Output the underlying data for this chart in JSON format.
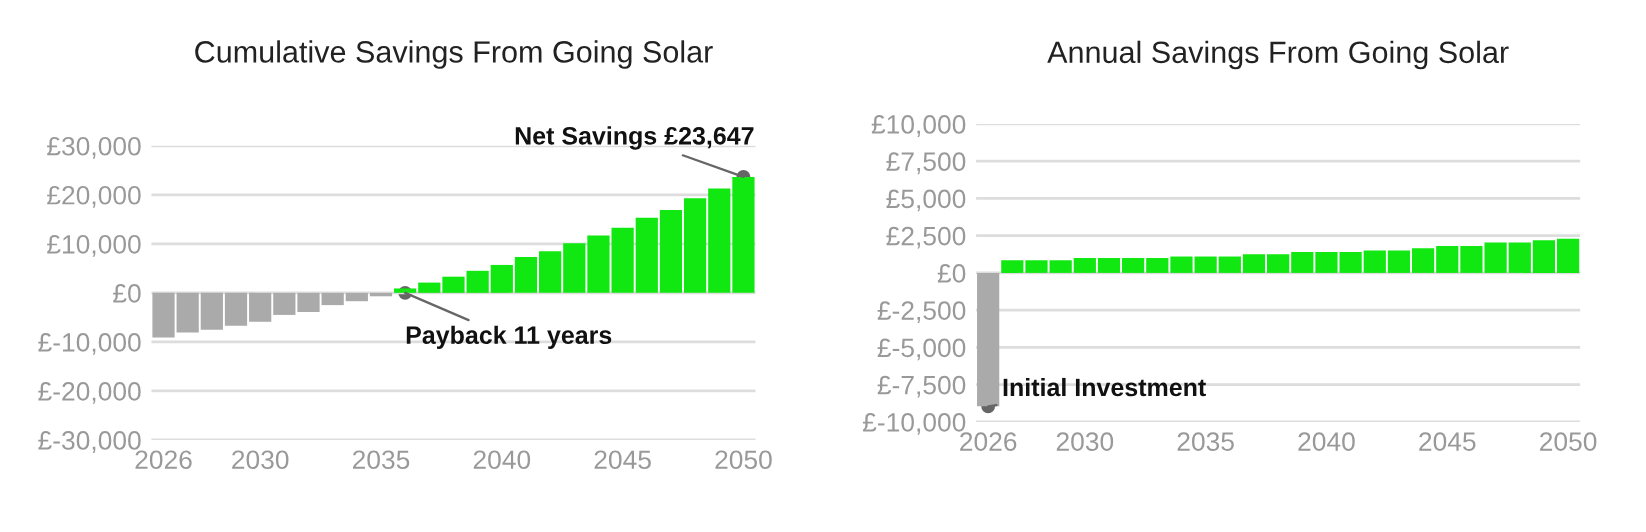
{
  "chart_data": [
    {
      "type": "bar",
      "title": "Cumulative Savings From Going Solar",
      "x": [
        2026,
        2027,
        2028,
        2029,
        2030,
        2031,
        2032,
        2033,
        2034,
        2035,
        2036,
        2037,
        2038,
        2039,
        2040,
        2041,
        2042,
        2043,
        2044,
        2045,
        2046,
        2047,
        2048,
        2049,
        2050
      ],
      "values": [
        -9100,
        -8100,
        -7500,
        -6700,
        -5900,
        -4500,
        -3900,
        -2500,
        -1700,
        -700,
        900,
        2100,
        3300,
        4500,
        5700,
        7300,
        8500,
        10100,
        11700,
        13300,
        15300,
        16900,
        19300,
        21300,
        23647
      ],
      "colors": [
        "#aaaaaa",
        "#aaaaaa",
        "#aaaaaa",
        "#aaaaaa",
        "#aaaaaa",
        "#aaaaaa",
        "#aaaaaa",
        "#aaaaaa",
        "#aaaaaa",
        "#aaaaaa",
        "#11e811",
        "#11e811",
        "#11e811",
        "#11e811",
        "#11e811",
        "#11e811",
        "#11e811",
        "#11e811",
        "#11e811",
        "#11e811",
        "#11e811",
        "#11e811",
        "#11e811",
        "#11e811",
        "#11e811"
      ],
      "xlim": [
        2025.5,
        2050.5
      ],
      "xticks": [
        2026,
        2030,
        2035,
        2040,
        2045,
        2050
      ],
      "ylim": [
        -30000,
        30000
      ],
      "yticks": [
        {
          "value": -30000,
          "label": "£-30,000"
        },
        {
          "value": -20000,
          "label": "£-20,000"
        },
        {
          "value": -10000,
          "label": "£-10,000"
        },
        {
          "value": 0,
          "label": "£0"
        },
        {
          "value": 10000,
          "label": "£10,000"
        },
        {
          "value": 20000,
          "label": "£20,000"
        },
        {
          "value": 30000,
          "label": "£30,000"
        }
      ],
      "grid": "y",
      "legend": false,
      "annotations": [
        {
          "text": "Net Savings £23,647",
          "x": 2050,
          "y": 23647
        },
        {
          "text": "Payback 11 years",
          "x": 2036,
          "y": 0
        }
      ]
    },
    {
      "type": "bar",
      "title": "Annual Savings From Going Solar",
      "x": [
        2026,
        2027,
        2028,
        2029,
        2030,
        2031,
        2032,
        2033,
        2034,
        2035,
        2036,
        2037,
        2038,
        2039,
        2040,
        2041,
        2042,
        2043,
        2044,
        2045,
        2046,
        2047,
        2048,
        2049,
        2050
      ],
      "values": [
        -8950,
        850,
        850,
        850,
        1000,
        1000,
        1000,
        1000,
        1100,
        1100,
        1100,
        1250,
        1250,
        1400,
        1400,
        1400,
        1500,
        1500,
        1650,
        1800,
        1800,
        2050,
        2050,
        2200,
        2300
      ],
      "colors": [
        "#aaaaaa",
        "#11e811",
        "#11e811",
        "#11e811",
        "#11e811",
        "#11e811",
        "#11e811",
        "#11e811",
        "#11e811",
        "#11e811",
        "#11e811",
        "#11e811",
        "#11e811",
        "#11e811",
        "#11e811",
        "#11e811",
        "#11e811",
        "#11e811",
        "#11e811",
        "#11e811",
        "#11e811",
        "#11e811",
        "#11e811",
        "#11e811",
        "#11e811"
      ],
      "xlim": [
        2025.5,
        2050.5
      ],
      "xticks": [
        2026,
        2030,
        2035,
        2040,
        2045,
        2050
      ],
      "ylim": [
        -10000,
        10000
      ],
      "yticks": [
        {
          "value": -10000,
          "label": "£-10,000"
        },
        {
          "value": -7500,
          "label": "£-7,500"
        },
        {
          "value": -5000,
          "label": "£-5,000"
        },
        {
          "value": -2500,
          "label": "£-2,500"
        },
        {
          "value": 0,
          "label": "£0"
        },
        {
          "value": 2500,
          "label": "£2,500"
        },
        {
          "value": 5000,
          "label": "£5,000"
        },
        {
          "value": 7500,
          "label": "£7,500"
        },
        {
          "value": 10000,
          "label": "£10,000"
        }
      ],
      "grid": "y",
      "legend": false,
      "annotations": [
        {
          "text": "Initial Investment",
          "x": 2026,
          "y": -8950
        }
      ]
    }
  ]
}
